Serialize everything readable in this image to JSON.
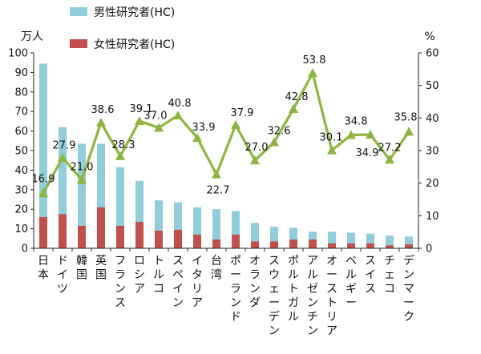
{
  "chart_data": {
    "type": "bar",
    "categories": [
      "日本",
      "ドイツ",
      "韓国",
      "英国",
      "フランス",
      "ロシア",
      "トルコ",
      "スペイン",
      "イタリア",
      "台湾",
      "ポーランド",
      "オランダ",
      "スウェーデン",
      "ポルトガル",
      "アルゼンチン",
      "オーストリア",
      "ベルギー",
      "スイス",
      "チェコ",
      "デンマーク"
    ],
    "series": [
      {
        "name": "男性研究者(HC)",
        "kind": "bar",
        "axis": "left",
        "color": "#92cddc",
        "values": [
          94.5,
          62.0,
          53.5,
          53.5,
          41.5,
          34.5,
          24.5,
          23.5,
          21.0,
          20.0,
          19.0,
          13.0,
          11.0,
          10.5,
          8.5,
          8.5,
          8.0,
          7.5,
          6.5,
          6.0
        ]
      },
      {
        "name": "女性研究者(HC)",
        "kind": "bar",
        "axis": "left",
        "color": "#c0504d",
        "values": [
          16.0,
          17.5,
          11.5,
          21.0,
          11.5,
          13.5,
          9.0,
          9.5,
          7.0,
          4.5,
          7.0,
          3.5,
          3.5,
          4.5,
          4.5,
          2.5,
          2.5,
          2.5,
          1.5,
          2.0
        ]
      },
      {
        "kind": "line",
        "axis": "right",
        "color": "#8db53f",
        "values": [
          16.9,
          27.9,
          21.0,
          38.6,
          28.3,
          39.1,
          37.0,
          40.8,
          33.9,
          22.7,
          37.9,
          27.0,
          32.6,
          42.8,
          53.8,
          30.1,
          34.8,
          34.9,
          27.2,
          35.8
        ],
        "labels": [
          "16.9",
          "27.9",
          "21.0",
          "38.6",
          "28.3",
          "39.1",
          "37.0",
          "40.8",
          "33.9",
          "22.7",
          "37.9",
          "27.0",
          "32.6",
          "42.8",
          "53.8",
          "30.1",
          "34.8",
          "34.9",
          "27.2",
          "35.8"
        ]
      }
    ],
    "left_axis": {
      "unit": "万人",
      "min": 0,
      "max": 100,
      "ticks": [
        "0",
        "10",
        "20",
        "30",
        "40",
        "50",
        "60",
        "70",
        "80",
        "90",
        "100"
      ]
    },
    "right_axis": {
      "unit": "%",
      "min": 0,
      "max": 60,
      "ticks": [
        "0",
        "10",
        "20",
        "30",
        "40",
        "50",
        "60"
      ]
    },
    "legend": {
      "position": "top-center"
    }
  }
}
